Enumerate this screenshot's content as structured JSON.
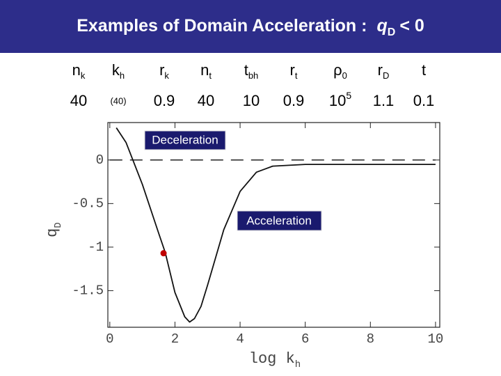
{
  "title": {
    "text": "Examples of Domain Acceleration :",
    "symbol": "q",
    "subscript": "D",
    "relation": "< 0"
  },
  "table": {
    "columns": [
      {
        "symbol": "n",
        "subscript": "k"
      },
      {
        "symbol": "k",
        "subscript": "h"
      },
      {
        "symbol": "r",
        "subscript": "k"
      },
      {
        "symbol": "n",
        "subscript": "t"
      },
      {
        "symbol": "t",
        "subscript": "bh"
      },
      {
        "symbol": "r",
        "subscript": "t"
      },
      {
        "symbol": "ρ",
        "subscript": "0"
      },
      {
        "symbol": "r",
        "subscript": "D"
      },
      {
        "symbol": "t"
      }
    ],
    "row": [
      "40",
      "(40)",
      "0.9",
      "40",
      "10",
      "0.9",
      {
        "base": "10",
        "exponent": "5"
      },
      "1.1",
      "0.1"
    ]
  },
  "chart_data": {
    "type": "line",
    "x_label": {
      "text": "log k",
      "subscript": "h"
    },
    "y_label": {
      "text": "q",
      "subscript": "D"
    },
    "x": [
      0.2,
      0.5,
      1,
      1.5,
      1.7,
      2,
      2.3,
      2.45,
      2.6,
      2.8,
      3,
      3.5,
      4,
      4.5,
      5,
      6,
      8,
      10
    ],
    "values": [
      0.37,
      0.2,
      -0.28,
      -0.84,
      -1.06,
      -1.52,
      -1.8,
      -1.86,
      -1.82,
      -1.68,
      -1.44,
      -0.8,
      -0.36,
      -0.14,
      -0.07,
      -0.05,
      -0.05,
      -0.05
    ],
    "color": "#111111",
    "reference_line": 0,
    "highlight": {
      "x": 1.65,
      "y": -1.07,
      "color": "#c00000"
    },
    "annotations": [
      {
        "text": "Deceleration"
      },
      {
        "text": "Acceleration"
      }
    ],
    "xlim": [
      -0.06,
      10.13
    ],
    "ylim": [
      -1.92,
      0.43
    ],
    "xticks": [
      0,
      2,
      4,
      6,
      8,
      10
    ],
    "yticks": [
      0,
      -0.5,
      -1,
      -1.5
    ]
  }
}
